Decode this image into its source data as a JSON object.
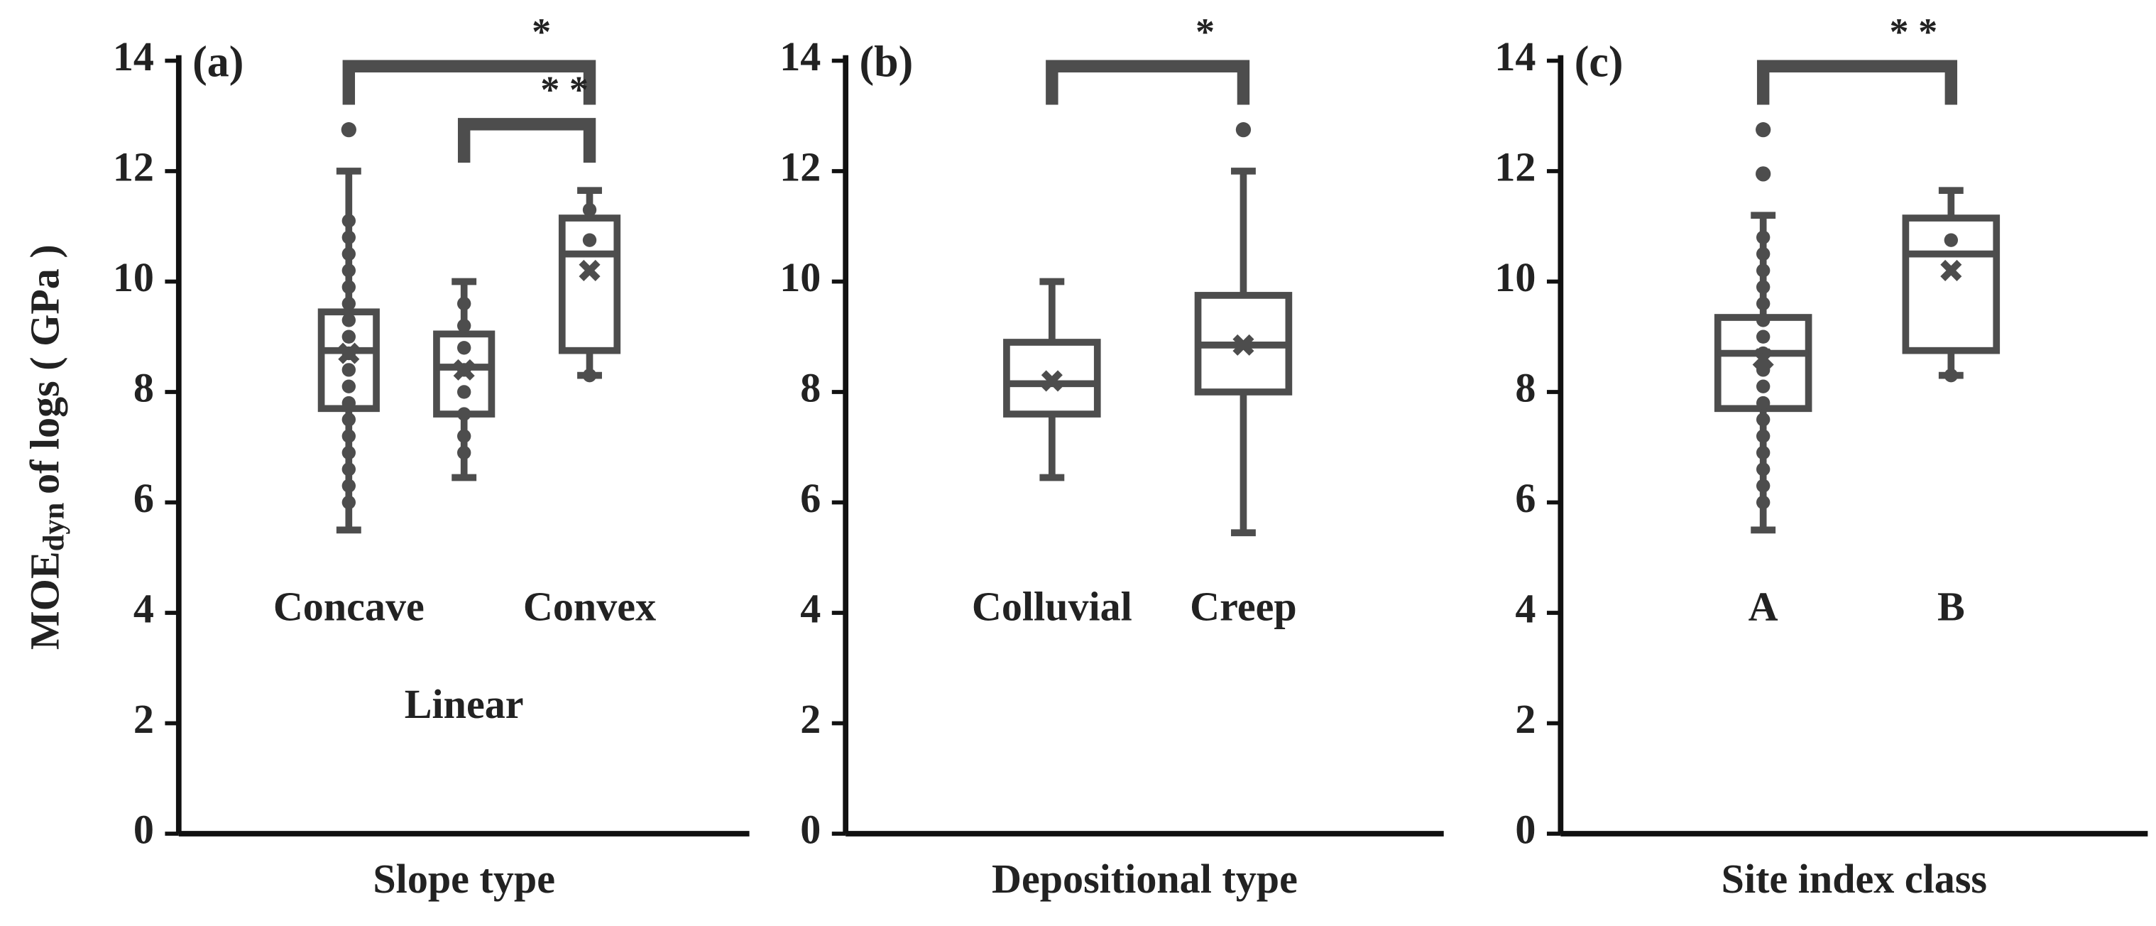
{
  "chart_data": [
    {
      "type": "box",
      "panel_label": "(a)",
      "xlabel": "Slope type",
      "ylabel": {
        "main": "MOE",
        "sub": "dyn",
        "rest": "of logs ( GPa )"
      },
      "ylim": [
        0,
        14
      ],
      "yticks": [
        0,
        2,
        4,
        6,
        8,
        10,
        12,
        14
      ],
      "color": "#4d4d4d",
      "categories": [
        "Concave",
        "Linear",
        "Convex"
      ],
      "boxes": [
        {
          "low": 5.5,
          "q1": 7.7,
          "median": 8.75,
          "q3": 9.45,
          "high": 12.0,
          "mean": 8.7,
          "outliers": [
            12.75
          ],
          "points": [
            6.0,
            6.3,
            6.6,
            6.9,
            7.2,
            7.5,
            7.8,
            8.1,
            8.4,
            8.7,
            9.0,
            9.3,
            9.6,
            9.9,
            10.2,
            10.5,
            10.8,
            11.1
          ]
        },
        {
          "low": 6.45,
          "q1": 7.6,
          "median": 8.45,
          "q3": 9.05,
          "high": 10.0,
          "mean": 8.4,
          "outliers": [],
          "points": [
            6.9,
            7.2,
            7.6,
            8.0,
            8.4,
            8.8,
            9.2,
            9.6
          ]
        },
        {
          "low": 8.3,
          "q1": 8.75,
          "median": 10.5,
          "q3": 11.15,
          "high": 11.65,
          "mean": 10.2,
          "outliers": [],
          "points": [
            8.3,
            10.75,
            11.3
          ]
        }
      ],
      "brackets": [
        {
          "from": 0,
          "to": 2,
          "y": 13.9,
          "label": "*"
        },
        {
          "from": 1,
          "to": 2,
          "y": 12.85,
          "label": "* *"
        }
      ]
    },
    {
      "type": "box",
      "panel_label": "(b)",
      "xlabel": "Depositional type",
      "ylim": [
        0,
        14
      ],
      "yticks": [
        0,
        2,
        4,
        6,
        8,
        10,
        12,
        14
      ],
      "color": "#4d4d4d",
      "categories": [
        "Colluvial",
        "Creep"
      ],
      "boxes": [
        {
          "low": 6.45,
          "q1": 7.6,
          "median": 8.15,
          "q3": 8.9,
          "high": 10.0,
          "mean": 8.2,
          "outliers": [],
          "points": []
        },
        {
          "low": 5.45,
          "q1": 8.0,
          "median": 8.85,
          "q3": 9.75,
          "high": 12.0,
          "mean": 8.85,
          "outliers": [
            12.75
          ],
          "points": []
        }
      ],
      "brackets": [
        {
          "from": 0,
          "to": 1,
          "y": 13.9,
          "label": "*"
        }
      ]
    },
    {
      "type": "box",
      "panel_label": "(c)",
      "xlabel": "Site index class",
      "ylim": [
        0,
        14
      ],
      "yticks": [
        0,
        2,
        4,
        6,
        8,
        10,
        12,
        14
      ],
      "color": "#4d4d4d",
      "categories": [
        "A",
        "B"
      ],
      "boxes": [
        {
          "low": 5.5,
          "q1": 7.7,
          "median": 8.7,
          "q3": 9.35,
          "high": 11.2,
          "mean": 8.6,
          "outliers": [
            12.75,
            11.95
          ],
          "points": [
            6.0,
            6.3,
            6.6,
            6.9,
            7.2,
            7.5,
            7.8,
            8.1,
            8.4,
            8.7,
            9.0,
            9.3,
            9.6,
            9.9,
            10.2,
            10.5,
            10.8
          ]
        },
        {
          "low": 8.3,
          "q1": 8.75,
          "median": 10.5,
          "q3": 11.15,
          "high": 11.65,
          "mean": 10.2,
          "outliers": [],
          "points": [
            8.3,
            10.75
          ]
        }
      ],
      "brackets": [
        {
          "from": 0,
          "to": 1,
          "y": 13.9,
          "label": "* *"
        }
      ]
    }
  ]
}
